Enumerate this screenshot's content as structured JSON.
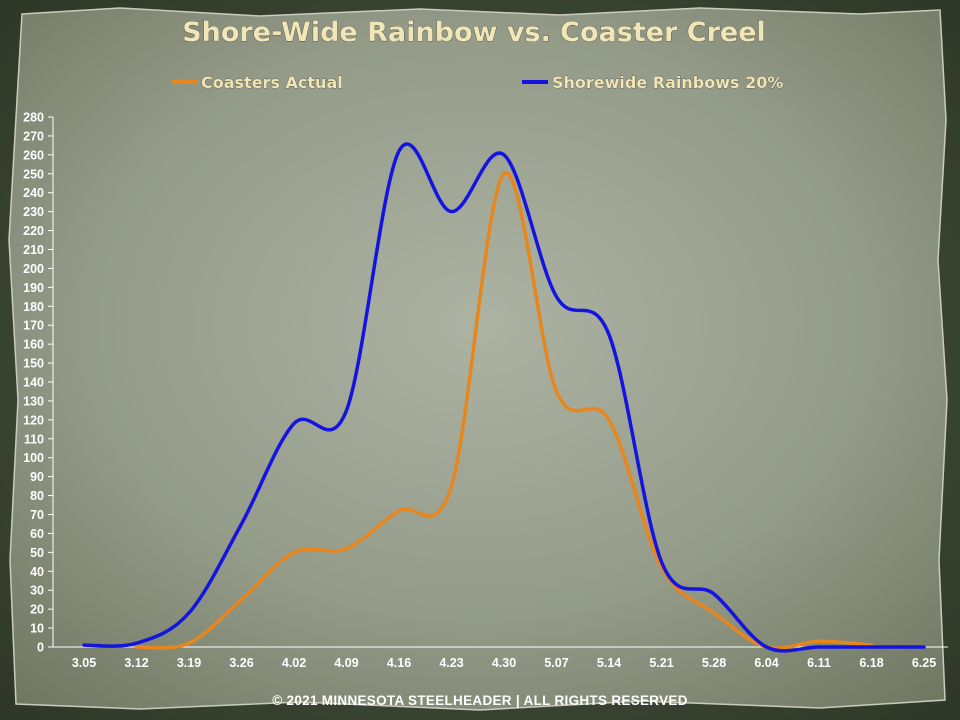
{
  "chart_data": {
    "type": "line",
    "title": "Shore-Wide Rainbow vs. Coaster Creel",
    "categories": [
      "3.05",
      "3.12",
      "3.19",
      "3.26",
      "4.02",
      "4.09",
      "4.16",
      "4.23",
      "4.30",
      "5.07",
      "5.14",
      "5.21",
      "5.28",
      "6.04",
      "6.11",
      "6.18",
      "6.25"
    ],
    "yticks": [
      0,
      10,
      20,
      30,
      40,
      50,
      60,
      70,
      80,
      90,
      100,
      110,
      120,
      130,
      140,
      150,
      160,
      170,
      180,
      190,
      200,
      210,
      220,
      230,
      240,
      250,
      260,
      270,
      280
    ],
    "ylim": [
      0,
      280
    ],
    "series": [
      {
        "name": "Coasters Actual",
        "color": "#e8861e",
        "values": [
          null,
          0,
          2,
          25,
          50,
          52,
          72,
          85,
          250,
          135,
          120,
          42,
          18,
          0,
          3,
          1,
          null
        ]
      },
      {
        "name": "Shorewide Rainbows 20%",
        "color": "#1414e0",
        "values": [
          1,
          2,
          18,
          65,
          118,
          125,
          262,
          230,
          260,
          185,
          165,
          45,
          28,
          0,
          0,
          0,
          0
        ]
      }
    ],
    "legend_position": "top",
    "grid": false,
    "footer": "© 2021 MINNESOTA STEELHEADER | ALL RIGHTS RESERVED"
  }
}
